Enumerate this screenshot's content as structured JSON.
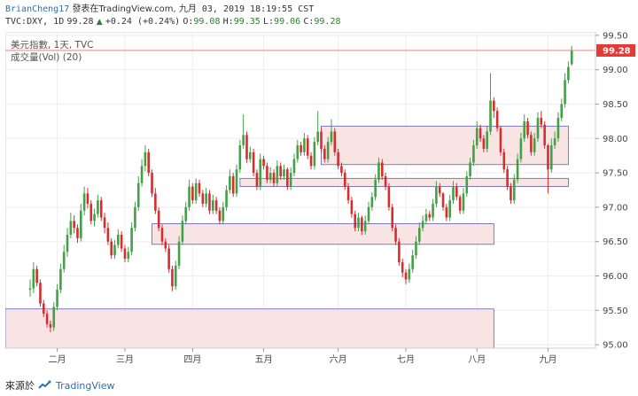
{
  "header": {
    "author": "BrianCheng17",
    "published_on": "發表在TradingView.com,",
    "date": "九月 03, 2019 18:19:55 CST",
    "symbol": "TVC:DXY, 1D",
    "last": "99.28",
    "triangle": "▲",
    "change": "+0.24 (+0.24%)",
    "o_label": "O:",
    "o_value": "99.08",
    "h_label": "H:",
    "h_value": "99.35",
    "l_label": "L:",
    "l_value": "99.06",
    "c_label": "C:",
    "c_value": "99.28"
  },
  "legend": {
    "line1": "美元指數, 1天, TVC",
    "line2": "成交量(Vol) (20)"
  },
  "footer": {
    "text": "來源於",
    "brand": "TradingView"
  },
  "colors": {
    "up": "#43a047",
    "down": "#d32f2f",
    "zone_fill": "#f9e4e4",
    "zone_stroke": "#5a5fb5",
    "price_line": "#e57373",
    "price_tag": "#e53935",
    "grid": "#eeeeee"
  },
  "chart_data": {
    "type": "candlestick",
    "symbol": "美元指數",
    "interval": "1D",
    "ylim": [
      94.95,
      99.55
    ],
    "y_ticks": [
      95.0,
      95.5,
      96.0,
      96.5,
      97.0,
      97.5,
      98.0,
      98.5,
      99.0,
      99.5
    ],
    "y_tick_labels": [
      "95.00",
      "95.50",
      "96.00",
      "96.50",
      "97.00",
      "97.50",
      "98.00",
      "98.50",
      "99.00",
      "99.50"
    ],
    "x_labels": [
      {
        "label": "二月",
        "index": 8
      },
      {
        "label": "三月",
        "index": 28
      },
      {
        "label": "四月",
        "index": 48
      },
      {
        "label": "五月",
        "index": 69
      },
      {
        "label": "六月",
        "index": 91
      },
      {
        "label": "七月",
        "index": 111
      },
      {
        "label": "八月",
        "index": 132
      },
      {
        "label": "九月",
        "index": 153
      }
    ],
    "last_price": 99.28,
    "last_price_label": "99.28",
    "zones": [
      {
        "start_index": 86,
        "end_index": 159,
        "top": 98.18,
        "bottom": 97.62
      },
      {
        "start_index": 62,
        "end_index": 159,
        "top": 97.42,
        "bottom": 97.3
      },
      {
        "start_index": 36,
        "end_index": 137,
        "top": 96.76,
        "bottom": 96.46
      },
      {
        "start_index": 0,
        "end_index": 137,
        "top": 95.52,
        "bottom": 94.95
      }
    ],
    "close": [
      95.82,
      96.1,
      95.9,
      95.6,
      95.45,
      95.3,
      95.25,
      95.55,
      95.8,
      96.1,
      96.35,
      96.6,
      96.8,
      96.7,
      96.55,
      96.95,
      97.2,
      97.05,
      96.8,
      96.9,
      97.1,
      96.85,
      96.7,
      96.5,
      96.3,
      96.45,
      96.6,
      96.4,
      96.25,
      96.35,
      96.7,
      97.0,
      97.35,
      97.6,
      97.8,
      97.5,
      97.2,
      96.95,
      96.7,
      96.5,
      96.4,
      96.1,
      95.85,
      96.15,
      96.5,
      96.8,
      97.0,
      97.3,
      97.1,
      97.35,
      97.2,
      97.05,
      97.2,
      96.95,
      97.1,
      96.95,
      96.8,
      97.0,
      97.25,
      97.45,
      97.2,
      97.55,
      97.9,
      98.05,
      97.7,
      97.8,
      97.5,
      97.3,
      97.7,
      97.6,
      97.4,
      97.5,
      97.35,
      97.6,
      97.45,
      97.55,
      97.3,
      97.5,
      97.7,
      97.9,
      97.8,
      98.0,
      97.75,
      97.6,
      97.95,
      98.1,
      97.85,
      97.7,
      97.95,
      98.1,
      97.8,
      97.6,
      97.5,
      97.3,
      97.1,
      96.9,
      96.7,
      96.85,
      96.65,
      96.8,
      97.0,
      97.15,
      97.4,
      97.65,
      97.45,
      97.3,
      97.0,
      96.7,
      96.5,
      96.2,
      96.05,
      95.95,
      96.1,
      96.3,
      96.5,
      96.7,
      96.8,
      96.9,
      96.85,
      97.05,
      97.3,
      97.2,
      97.0,
      96.85,
      97.1,
      97.3,
      97.15,
      96.95,
      97.2,
      97.45,
      97.65,
      97.9,
      98.15,
      98.0,
      97.85,
      98.1,
      98.55,
      98.4,
      98.15,
      97.8,
      97.55,
      97.3,
      97.1,
      97.4,
      97.7,
      98.0,
      98.25,
      98.05,
      97.8,
      98.0,
      98.3,
      98.2,
      97.9,
      97.55,
      97.9,
      98.0,
      98.3,
      98.5,
      98.85,
      99.04,
      99.28
    ],
    "open": [
      95.8,
      95.82,
      96.1,
      95.9,
      95.6,
      95.45,
      95.3,
      95.25,
      95.55,
      95.8,
      96.1,
      96.35,
      96.6,
      96.8,
      96.7,
      96.55,
      96.95,
      97.2,
      97.05,
      96.8,
      96.9,
      97.1,
      96.85,
      96.7,
      96.5,
      96.3,
      96.45,
      96.6,
      96.4,
      96.25,
      96.35,
      96.7,
      97.0,
      97.35,
      97.6,
      97.8,
      97.5,
      97.2,
      96.95,
      96.7,
      96.5,
      96.4,
      96.1,
      95.85,
      96.15,
      96.5,
      96.8,
      97.0,
      97.3,
      97.1,
      97.35,
      97.2,
      97.05,
      97.2,
      96.95,
      97.1,
      96.95,
      96.8,
      97.0,
      97.25,
      97.45,
      97.2,
      97.55,
      97.9,
      98.05,
      97.7,
      97.8,
      97.5,
      97.3,
      97.7,
      97.6,
      97.4,
      97.5,
      97.35,
      97.6,
      97.45,
      97.55,
      97.3,
      97.5,
      97.7,
      97.9,
      97.8,
      98.0,
      97.75,
      97.6,
      97.95,
      98.1,
      97.85,
      97.7,
      97.95,
      98.1,
      97.8,
      97.6,
      97.5,
      97.3,
      97.1,
      96.9,
      96.7,
      96.85,
      96.65,
      96.8,
      97.0,
      97.15,
      97.4,
      97.65,
      97.45,
      97.3,
      97.0,
      96.7,
      96.5,
      96.2,
      96.05,
      95.95,
      96.1,
      96.3,
      96.5,
      96.7,
      96.8,
      96.9,
      96.85,
      97.05,
      97.3,
      97.2,
      97.0,
      96.85,
      97.1,
      97.3,
      97.15,
      96.95,
      97.2,
      97.45,
      97.65,
      97.9,
      98.15,
      98.0,
      97.85,
      98.1,
      98.55,
      98.4,
      98.15,
      97.8,
      97.55,
      97.3,
      97.1,
      97.4,
      97.7,
      98.0,
      98.25,
      98.05,
      97.8,
      98.0,
      98.3,
      98.2,
      97.9,
      97.55,
      97.9,
      98.0,
      98.3,
      98.5,
      98.85,
      99.08
    ],
    "high": [
      95.95,
      96.2,
      96.15,
      95.95,
      95.65,
      95.5,
      95.35,
      95.62,
      95.88,
      96.18,
      96.45,
      96.7,
      96.92,
      96.88,
      96.75,
      97.05,
      97.3,
      97.28,
      97.1,
      96.98,
      97.18,
      97.15,
      96.92,
      96.78,
      96.55,
      96.52,
      96.68,
      96.65,
      96.45,
      96.42,
      96.78,
      97.08,
      97.45,
      97.7,
      97.9,
      97.85,
      97.55,
      97.28,
      97.0,
      96.75,
      96.55,
      96.45,
      96.15,
      96.22,
      96.58,
      96.88,
      97.08,
      97.4,
      97.35,
      97.42,
      97.4,
      97.25,
      97.28,
      97.25,
      97.18,
      97.15,
      97.0,
      97.08,
      97.32,
      97.55,
      97.5,
      97.62,
      97.98,
      98.35,
      98.1,
      97.88,
      97.85,
      97.55,
      97.78,
      97.75,
      97.65,
      97.58,
      97.55,
      97.68,
      97.65,
      97.62,
      97.58,
      97.58,
      97.78,
      97.98,
      97.95,
      98.08,
      98.05,
      97.8,
      98.02,
      98.4,
      98.15,
      97.9,
      98.02,
      98.28,
      98.15,
      97.85,
      97.65,
      97.55,
      97.35,
      97.15,
      96.95,
      96.92,
      96.88,
      96.88,
      97.08,
      97.22,
      97.48,
      97.72,
      97.7,
      97.5,
      97.35,
      97.05,
      96.75,
      96.55,
      96.25,
      96.1,
      96.18,
      96.38,
      96.58,
      96.78,
      96.88,
      96.98,
      96.95,
      97.12,
      97.38,
      97.35,
      97.22,
      97.05,
      97.18,
      97.38,
      97.35,
      97.18,
      97.28,
      97.52,
      97.72,
      97.98,
      98.25,
      98.2,
      98.05,
      98.18,
      98.95,
      98.6,
      98.45,
      98.18,
      97.85,
      97.6,
      97.35,
      97.48,
      97.78,
      98.08,
      98.35,
      98.3,
      98.1,
      98.08,
      98.38,
      98.4,
      98.25,
      97.92,
      98.0,
      98.1,
      98.38,
      98.58,
      98.95,
      99.12,
      99.35
    ],
    "low": [
      95.7,
      95.75,
      95.85,
      95.55,
      95.4,
      95.25,
      95.18,
      95.2,
      95.5,
      95.75,
      96.05,
      96.28,
      96.55,
      96.62,
      96.48,
      96.5,
      96.88,
      96.98,
      96.75,
      96.72,
      96.85,
      96.8,
      96.62,
      96.45,
      96.25,
      96.25,
      96.4,
      96.35,
      96.2,
      96.2,
      96.3,
      96.65,
      96.95,
      97.3,
      97.52,
      97.45,
      97.15,
      96.9,
      96.65,
      96.45,
      96.35,
      96.05,
      95.78,
      95.8,
      96.1,
      96.45,
      96.75,
      96.95,
      97.05,
      97.05,
      97.15,
      97.0,
      97.0,
      96.9,
      96.9,
      96.9,
      96.75,
      96.75,
      96.95,
      97.2,
      97.15,
      97.15,
      97.5,
      97.85,
      97.65,
      97.65,
      97.45,
      97.25,
      97.25,
      97.55,
      97.35,
      97.35,
      97.3,
      97.3,
      97.4,
      97.4,
      97.25,
      97.25,
      97.45,
      97.65,
      97.75,
      97.75,
      97.7,
      97.55,
      97.55,
      97.9,
      97.8,
      97.65,
      97.65,
      97.9,
      97.75,
      97.55,
      97.45,
      97.25,
      97.05,
      96.85,
      96.65,
      96.65,
      96.6,
      96.6,
      96.75,
      96.95,
      97.1,
      97.35,
      97.4,
      97.25,
      96.95,
      96.65,
      96.45,
      96.15,
      95.98,
      95.88,
      95.9,
      96.05,
      96.25,
      96.45,
      96.65,
      96.75,
      96.8,
      96.8,
      97.0,
      97.15,
      96.95,
      96.8,
      96.8,
      97.05,
      97.1,
      96.9,
      96.9,
      97.15,
      97.4,
      97.6,
      97.85,
      97.95,
      97.8,
      97.8,
      98.05,
      98.3,
      98.1,
      97.75,
      97.5,
      97.25,
      97.05,
      97.05,
      97.35,
      97.65,
      97.95,
      98.0,
      97.75,
      97.75,
      97.95,
      98.15,
      97.85,
      97.2,
      97.5,
      97.85,
      97.95,
      98.25,
      98.45,
      98.8,
      99.06
    ]
  }
}
